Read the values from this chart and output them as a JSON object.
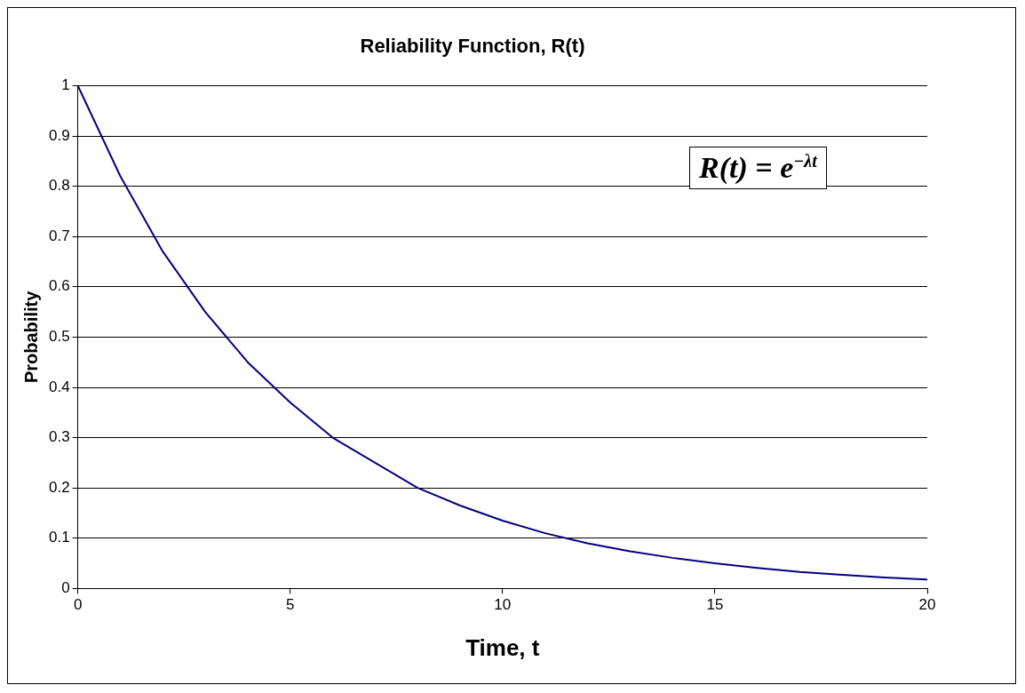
{
  "chart_data": {
    "type": "line",
    "title": "Reliability Function, R(t)",
    "xlabel": "Time, t",
    "ylabel": "Probability",
    "x": [
      0,
      1,
      2,
      3,
      4,
      5,
      6,
      7,
      8,
      9,
      10,
      11,
      12,
      13,
      14,
      15,
      16,
      17,
      18,
      19,
      20
    ],
    "series": [
      {
        "color": "#000080",
        "values": [
          1,
          0.82,
          0.67,
          0.55,
          0.45,
          0.37,
          0.3,
          0.25,
          0.2,
          0.165,
          0.135,
          0.11,
          0.09,
          0.074,
          0.061,
          0.05,
          0.041,
          0.033,
          0.027,
          0.022,
          0.018
        ]
      }
    ],
    "xlim": [
      0,
      20
    ],
    "xticks": [
      0,
      5,
      10,
      15,
      20
    ],
    "ylim": [
      0,
      1
    ],
    "yticks": [
      0,
      0.1,
      0.2,
      0.3,
      0.4,
      0.5,
      0.6,
      0.7,
      0.8,
      0.9,
      1
    ],
    "grid": "y",
    "legend": false,
    "marker": "none",
    "line_style": "solid",
    "annotations": [
      "R(t) = e$^{−λt}$"
    ]
  }
}
